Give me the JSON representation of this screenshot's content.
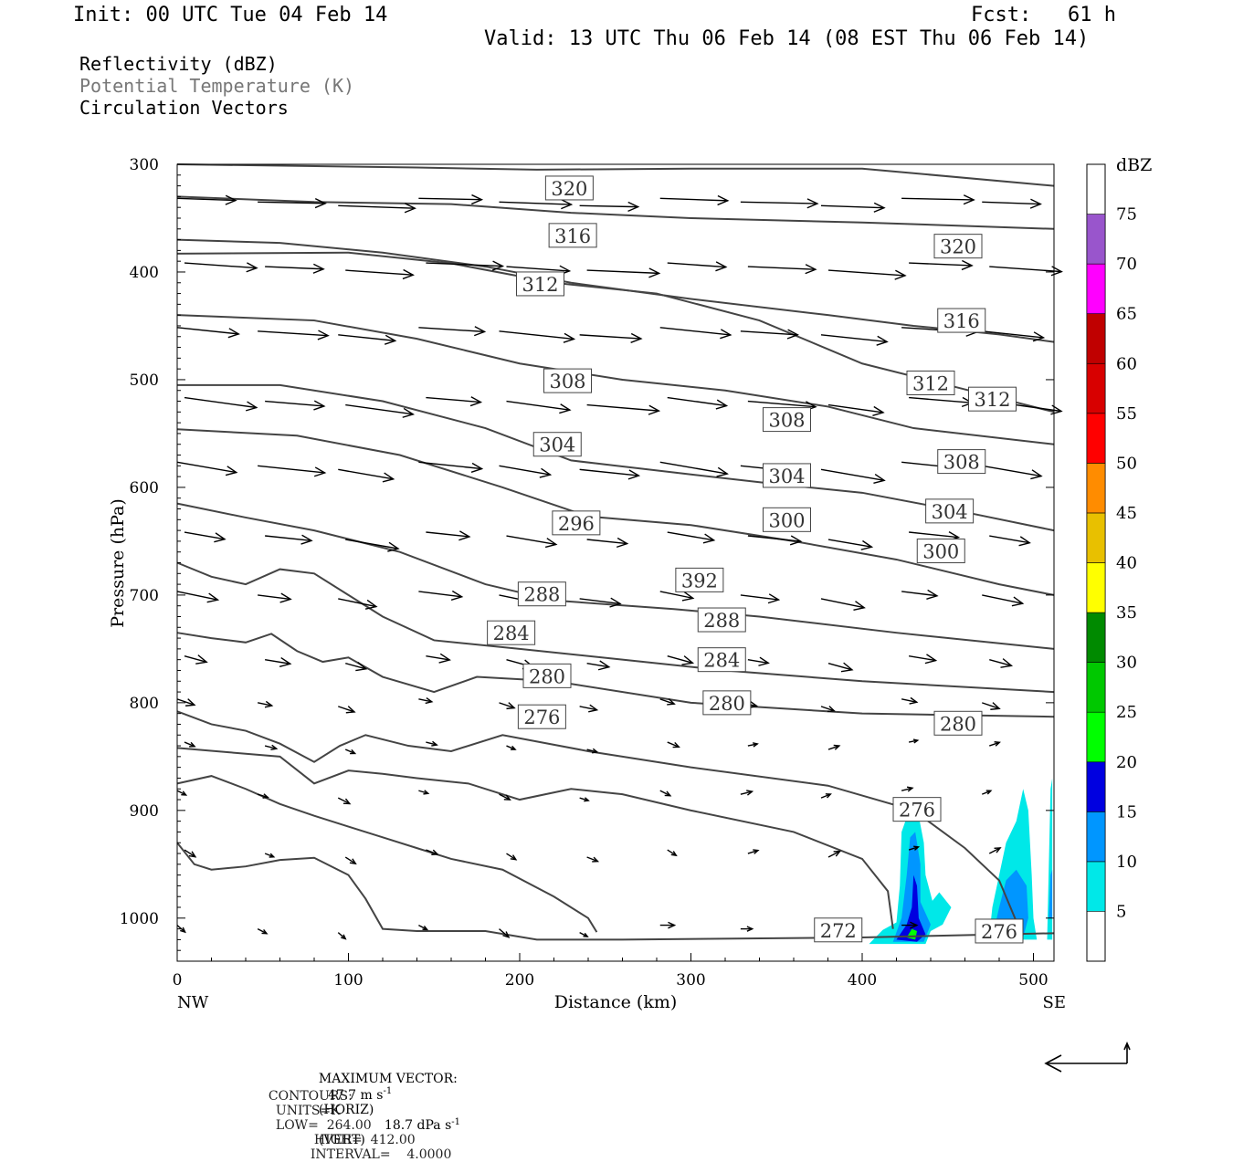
{
  "header": {
    "init": "Init: 00 UTC Tue 04 Feb 14",
    "fcst": "Fcst:   61 h",
    "valid": "Valid: 13 UTC Thu 06 Feb 14 (08 EST Thu 06 Feb 14)"
  },
  "fields": {
    "reflectivity": "Reflectivity (dBZ)",
    "theta": "Potential Temperature (K)",
    "vectors": "Circulation Vectors"
  },
  "footer": {
    "max_vector_label": "MAXIMUM VECTOR:",
    "horiz": "47.7 m s",
    "horiz_sup": "-1",
    "horiz_tag": "(HORIZ)",
    "vert": "18.7 dPa s",
    "vert_sup": "-1",
    "vert_tag": "(VERT)",
    "contours_label": "CONTOURS:",
    "units": "UNITS=K",
    "low": "LOW=  264.00",
    "high": "HIGH=  412.00",
    "interval": "INTERVAL=    4.0000"
  },
  "colors": {
    "contour": "#444444",
    "dbz_5": "#00e8e8",
    "dbz_10": "#0096ff",
    "dbz_15": "#0000e0",
    "dbz_20": "#00ff00",
    "dbz_25": "#00c800",
    "dbz_30": "#008a00",
    "dbz_35": "#ffff00",
    "dbz_40": "#e8c000",
    "dbz_45": "#ff8c00",
    "dbz_50": "#ff0000",
    "dbz_55": "#d80000",
    "dbz_60": "#c00000",
    "dbz_65": "#ff00ff",
    "dbz_70": "#9955cc"
  },
  "chart_data": {
    "type": "cross-section",
    "xlabel": "Distance (km)",
    "ylabel": "Pressure (hPa)",
    "xlim": [
      0,
      512
    ],
    "ylim": [
      1040,
      300
    ],
    "x_ticks": [
      0,
      100,
      200,
      300,
      400,
      500
    ],
    "y_ticks": [
      300,
      400,
      500,
      600,
      700,
      800,
      900,
      1000
    ],
    "x_end_labels": [
      "NW",
      "SE"
    ],
    "colorbar": {
      "title": "dBZ",
      "levels": [
        5,
        10,
        15,
        20,
        25,
        30,
        35,
        40,
        45,
        50,
        55,
        60,
        65,
        70,
        75
      ],
      "colors": [
        "#00e8e8",
        "#0096ff",
        "#0000e0",
        "#00ff00",
        "#00c800",
        "#008a00",
        "#ffff00",
        "#e8c000",
        "#ff8c00",
        "#ff0000",
        "#d80000",
        "#c00000",
        "#ff00ff",
        "#9955cc"
      ]
    },
    "contour_labels": [
      {
        "text": "320",
        "x": 229,
        "p": 322
      },
      {
        "text": "316",
        "x": 231,
        "p": 366
      },
      {
        "text": "312",
        "x": 212,
        "p": 411
      },
      {
        "text": "320",
        "x": 456,
        "p": 376
      },
      {
        "text": "316",
        "x": 458,
        "p": 445
      },
      {
        "text": "308",
        "x": 228,
        "p": 501
      },
      {
        "text": "312",
        "x": 440,
        "p": 503
      },
      {
        "text": "312",
        "x": 476,
        "p": 518
      },
      {
        "text": "304",
        "x": 222,
        "p": 560
      },
      {
        "text": "308",
        "x": 356,
        "p": 537
      },
      {
        "text": "308",
        "x": 458,
        "p": 576
      },
      {
        "text": "304",
        "x": 356,
        "p": 589
      },
      {
        "text": "304",
        "x": 451,
        "p": 622
      },
      {
        "text": "296",
        "x": 233,
        "p": 633
      },
      {
        "text": "300",
        "x": 356,
        "p": 630
      },
      {
        "text": "300",
        "x": 446,
        "p": 659
      },
      {
        "text": "288",
        "x": 213,
        "p": 699
      },
      {
        "text": "392",
        "x": 305,
        "p": 686
      },
      {
        "text": "288",
        "x": 318,
        "p": 723
      },
      {
        "text": "284",
        "x": 195,
        "p": 735
      },
      {
        "text": "284",
        "x": 318,
        "p": 760
      },
      {
        "text": "280",
        "x": 216,
        "p": 775
      },
      {
        "text": "280",
        "x": 321,
        "p": 800
      },
      {
        "text": "280",
        "x": 456,
        "p": 819
      },
      {
        "text": "276",
        "x": 213,
        "p": 813
      },
      {
        "text": "276",
        "x": 432,
        "p": 899
      },
      {
        "text": "272",
        "x": 386,
        "p": 1011
      },
      {
        "text": "276",
        "x": 480,
        "p": 1012
      }
    ]
  }
}
